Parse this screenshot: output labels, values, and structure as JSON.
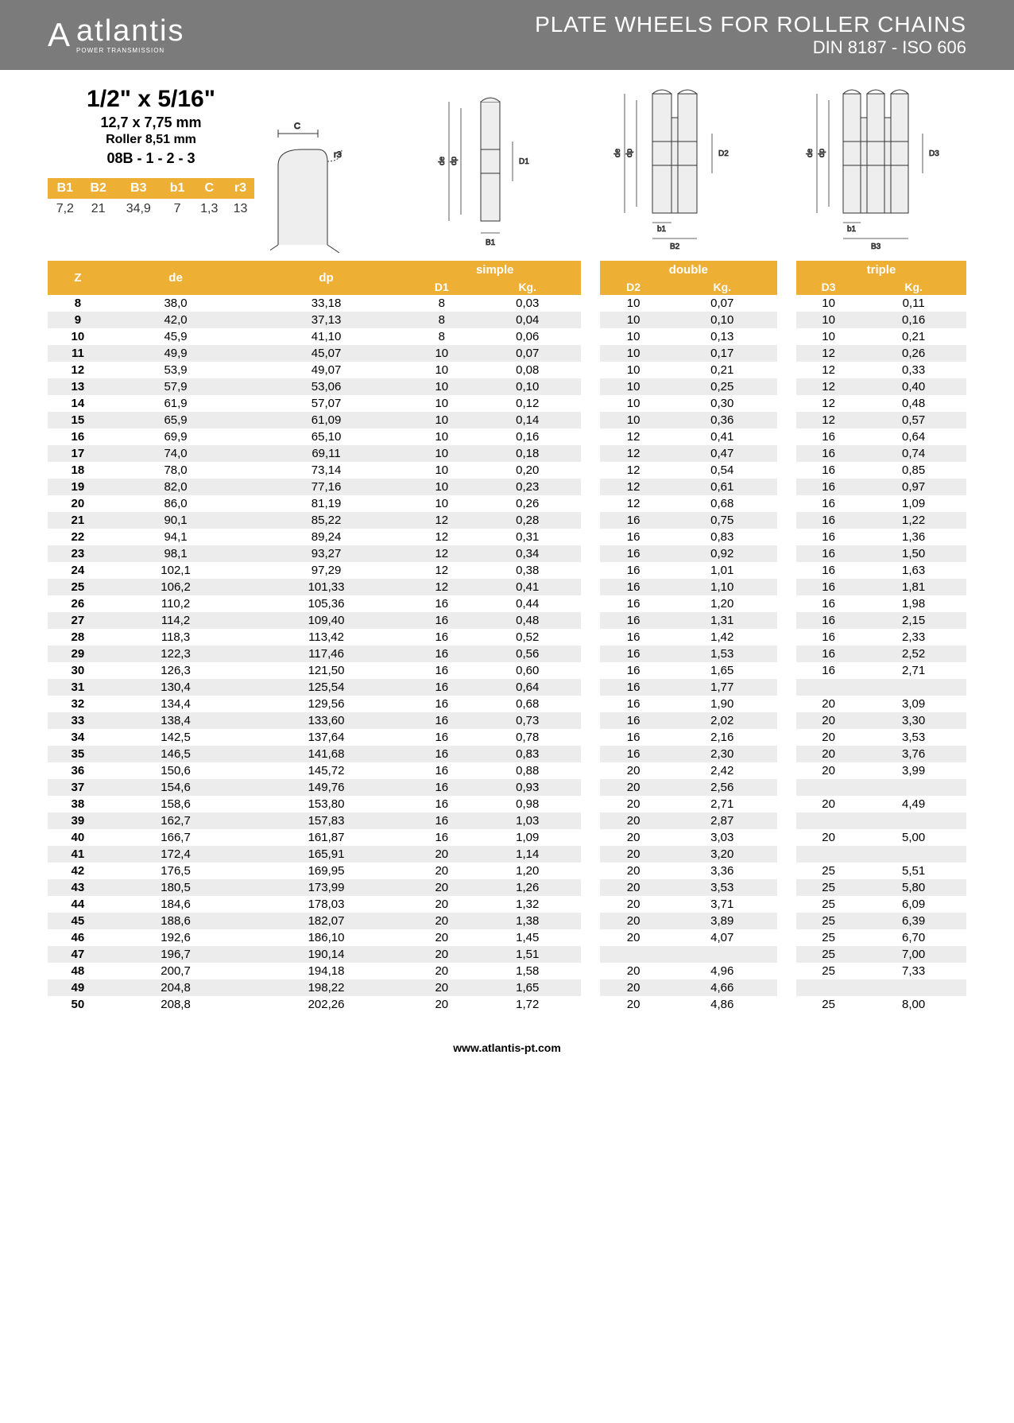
{
  "header": {
    "brand_mark": "A",
    "brand_name": "atlantis",
    "brand_sub": "POWER TRANSMISSION",
    "title1": "PLATE WHEELS FOR ROLLER CHAINS",
    "title2": "DIN 8187 - ISO 606"
  },
  "spec": {
    "size_in": "1/2\" x 5/16\"",
    "size_mm": "12,7 x 7,75 mm",
    "roller": "Roller 8,51 mm",
    "code": "08B - 1 - 2 - 3",
    "cols": [
      "B1",
      "B2",
      "B3",
      "b1",
      "C",
      "r3"
    ],
    "vals": [
      "7,2",
      "21",
      "34,9",
      "7",
      "1,3",
      "13"
    ]
  },
  "table": {
    "groups": [
      "simple",
      "double",
      "triple"
    ],
    "subhead_left": [
      "Z",
      "de",
      "dp"
    ],
    "subhead_pair": [
      "D1",
      "Kg.",
      "D2",
      "Kg.",
      "D3",
      "Kg."
    ],
    "rows": [
      {
        "z": "8",
        "de": "38,0",
        "dp": "33,18",
        "d1": "8",
        "k1": "0,03",
        "d2": "10",
        "k2": "0,07",
        "d3": "10",
        "k3": "0,11"
      },
      {
        "z": "9",
        "de": "42,0",
        "dp": "37,13",
        "d1": "8",
        "k1": "0,04",
        "d2": "10",
        "k2": "0,10",
        "d3": "10",
        "k3": "0,16"
      },
      {
        "z": "10",
        "de": "45,9",
        "dp": "41,10",
        "d1": "8",
        "k1": "0,06",
        "d2": "10",
        "k2": "0,13",
        "d3": "10",
        "k3": "0,21"
      },
      {
        "z": "11",
        "de": "49,9",
        "dp": "45,07",
        "d1": "10",
        "k1": "0,07",
        "d2": "10",
        "k2": "0,17",
        "d3": "12",
        "k3": "0,26"
      },
      {
        "z": "12",
        "de": "53,9",
        "dp": "49,07",
        "d1": "10",
        "k1": "0,08",
        "d2": "10",
        "k2": "0,21",
        "d3": "12",
        "k3": "0,33"
      },
      {
        "z": "13",
        "de": "57,9",
        "dp": "53,06",
        "d1": "10",
        "k1": "0,10",
        "d2": "10",
        "k2": "0,25",
        "d3": "12",
        "k3": "0,40"
      },
      {
        "z": "14",
        "de": "61,9",
        "dp": "57,07",
        "d1": "10",
        "k1": "0,12",
        "d2": "10",
        "k2": "0,30",
        "d3": "12",
        "k3": "0,48"
      },
      {
        "z": "15",
        "de": "65,9",
        "dp": "61,09",
        "d1": "10",
        "k1": "0,14",
        "d2": "10",
        "k2": "0,36",
        "d3": "12",
        "k3": "0,57"
      },
      {
        "z": "16",
        "de": "69,9",
        "dp": "65,10",
        "d1": "10",
        "k1": "0,16",
        "d2": "12",
        "k2": "0,41",
        "d3": "16",
        "k3": "0,64"
      },
      {
        "z": "17",
        "de": "74,0",
        "dp": "69,11",
        "d1": "10",
        "k1": "0,18",
        "d2": "12",
        "k2": "0,47",
        "d3": "16",
        "k3": "0,74"
      },
      {
        "z": "18",
        "de": "78,0",
        "dp": "73,14",
        "d1": "10",
        "k1": "0,20",
        "d2": "12",
        "k2": "0,54",
        "d3": "16",
        "k3": "0,85"
      },
      {
        "z": "19",
        "de": "82,0",
        "dp": "77,16",
        "d1": "10",
        "k1": "0,23",
        "d2": "12",
        "k2": "0,61",
        "d3": "16",
        "k3": "0,97"
      },
      {
        "z": "20",
        "de": "86,0",
        "dp": "81,19",
        "d1": "10",
        "k1": "0,26",
        "d2": "12",
        "k2": "0,68",
        "d3": "16",
        "k3": "1,09"
      },
      {
        "z": "21",
        "de": "90,1",
        "dp": "85,22",
        "d1": "12",
        "k1": "0,28",
        "d2": "16",
        "k2": "0,75",
        "d3": "16",
        "k3": "1,22"
      },
      {
        "z": "22",
        "de": "94,1",
        "dp": "89,24",
        "d1": "12",
        "k1": "0,31",
        "d2": "16",
        "k2": "0,83",
        "d3": "16",
        "k3": "1,36"
      },
      {
        "z": "23",
        "de": "98,1",
        "dp": "93,27",
        "d1": "12",
        "k1": "0,34",
        "d2": "16",
        "k2": "0,92",
        "d3": "16",
        "k3": "1,50"
      },
      {
        "z": "24",
        "de": "102,1",
        "dp": "97,29",
        "d1": "12",
        "k1": "0,38",
        "d2": "16",
        "k2": "1,01",
        "d3": "16",
        "k3": "1,63"
      },
      {
        "z": "25",
        "de": "106,2",
        "dp": "101,33",
        "d1": "12",
        "k1": "0,41",
        "d2": "16",
        "k2": "1,10",
        "d3": "16",
        "k3": "1,81"
      },
      {
        "z": "26",
        "de": "110,2",
        "dp": "105,36",
        "d1": "16",
        "k1": "0,44",
        "d2": "16",
        "k2": "1,20",
        "d3": "16",
        "k3": "1,98"
      },
      {
        "z": "27",
        "de": "114,2",
        "dp": "109,40",
        "d1": "16",
        "k1": "0,48",
        "d2": "16",
        "k2": "1,31",
        "d3": "16",
        "k3": "2,15"
      },
      {
        "z": "28",
        "de": "118,3",
        "dp": "113,42",
        "d1": "16",
        "k1": "0,52",
        "d2": "16",
        "k2": "1,42",
        "d3": "16",
        "k3": "2,33"
      },
      {
        "z": "29",
        "de": "122,3",
        "dp": "117,46",
        "d1": "16",
        "k1": "0,56",
        "d2": "16",
        "k2": "1,53",
        "d3": "16",
        "k3": "2,52"
      },
      {
        "z": "30",
        "de": "126,3",
        "dp": "121,50",
        "d1": "16",
        "k1": "0,60",
        "d2": "16",
        "k2": "1,65",
        "d3": "16",
        "k3": "2,71"
      },
      {
        "z": "31",
        "de": "130,4",
        "dp": "125,54",
        "d1": "16",
        "k1": "0,64",
        "d2": "16",
        "k2": "1,77",
        "d3": "",
        "k3": ""
      },
      {
        "z": "32",
        "de": "134,4",
        "dp": "129,56",
        "d1": "16",
        "k1": "0,68",
        "d2": "16",
        "k2": "1,90",
        "d3": "20",
        "k3": "3,09"
      },
      {
        "z": "33",
        "de": "138,4",
        "dp": "133,60",
        "d1": "16",
        "k1": "0,73",
        "d2": "16",
        "k2": "2,02",
        "d3": "20",
        "k3": "3,30"
      },
      {
        "z": "34",
        "de": "142,5",
        "dp": "137,64",
        "d1": "16",
        "k1": "0,78",
        "d2": "16",
        "k2": "2,16",
        "d3": "20",
        "k3": "3,53"
      },
      {
        "z": "35",
        "de": "146,5",
        "dp": "141,68",
        "d1": "16",
        "k1": "0,83",
        "d2": "16",
        "k2": "2,30",
        "d3": "20",
        "k3": "3,76"
      },
      {
        "z": "36",
        "de": "150,6",
        "dp": "145,72",
        "d1": "16",
        "k1": "0,88",
        "d2": "20",
        "k2": "2,42",
        "d3": "20",
        "k3": "3,99"
      },
      {
        "z": "37",
        "de": "154,6",
        "dp": "149,76",
        "d1": "16",
        "k1": "0,93",
        "d2": "20",
        "k2": "2,56",
        "d3": "",
        "k3": ""
      },
      {
        "z": "38",
        "de": "158,6",
        "dp": "153,80",
        "d1": "16",
        "k1": "0,98",
        "d2": "20",
        "k2": "2,71",
        "d3": "20",
        "k3": "4,49"
      },
      {
        "z": "39",
        "de": "162,7",
        "dp": "157,83",
        "d1": "16",
        "k1": "1,03",
        "d2": "20",
        "k2": "2,87",
        "d3": "",
        "k3": ""
      },
      {
        "z": "40",
        "de": "166,7",
        "dp": "161,87",
        "d1": "16",
        "k1": "1,09",
        "d2": "20",
        "k2": "3,03",
        "d3": "20",
        "k3": "5,00"
      },
      {
        "z": "41",
        "de": "172,4",
        "dp": "165,91",
        "d1": "20",
        "k1": "1,14",
        "d2": "20",
        "k2": "3,20",
        "d3": "",
        "k3": ""
      },
      {
        "z": "42",
        "de": "176,5",
        "dp": "169,95",
        "d1": "20",
        "k1": "1,20",
        "d2": "20",
        "k2": "3,36",
        "d3": "25",
        "k3": "5,51"
      },
      {
        "z": "43",
        "de": "180,5",
        "dp": "173,99",
        "d1": "20",
        "k1": "1,26",
        "d2": "20",
        "k2": "3,53",
        "d3": "25",
        "k3": "5,80"
      },
      {
        "z": "44",
        "de": "184,6",
        "dp": "178,03",
        "d1": "20",
        "k1": "1,32",
        "d2": "20",
        "k2": "3,71",
        "d3": "25",
        "k3": "6,09"
      },
      {
        "z": "45",
        "de": "188,6",
        "dp": "182,07",
        "d1": "20",
        "k1": "1,38",
        "d2": "20",
        "k2": "3,89",
        "d3": "25",
        "k3": "6,39"
      },
      {
        "z": "46",
        "de": "192,6",
        "dp": "186,10",
        "d1": "20",
        "k1": "1,45",
        "d2": "20",
        "k2": "4,07",
        "d3": "25",
        "k3": "6,70"
      },
      {
        "z": "47",
        "de": "196,7",
        "dp": "190,14",
        "d1": "20",
        "k1": "1,51",
        "d2": "",
        "k2": "",
        "d3": "25",
        "k3": "7,00"
      },
      {
        "z": "48",
        "de": "200,7",
        "dp": "194,18",
        "d1": "20",
        "k1": "1,58",
        "d2": "20",
        "k2": "4,96",
        "d3": "25",
        "k3": "7,33"
      },
      {
        "z": "49",
        "de": "204,8",
        "dp": "198,22",
        "d1": "20",
        "k1": "1,65",
        "d2": "20",
        "k2": "4,66",
        "d3": "",
        "k3": ""
      },
      {
        "z": "50",
        "de": "208,8",
        "dp": "202,26",
        "d1": "20",
        "k1": "1,72",
        "d2": "20",
        "k2": "4,86",
        "d3": "25",
        "k3": "8,00"
      }
    ]
  },
  "footer": {
    "url": "www.atlantis-pt.com"
  },
  "colors": {
    "orange": "#eeaf35",
    "grey": "#7b7b7b",
    "row_alt": "#ececec"
  }
}
